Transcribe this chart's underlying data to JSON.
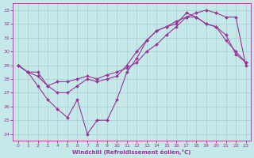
{
  "xlabel": "Windchill (Refroidissement éolien,°C)",
  "background_color": "#c5e8e8",
  "line_color": "#993399",
  "grid_color": "#a8d0d0",
  "ylim": [
    23.5,
    33.5
  ],
  "xlim": [
    -0.5,
    23.5
  ],
  "yticks": [
    24,
    25,
    26,
    27,
    28,
    29,
    30,
    31,
    32,
    33
  ],
  "xticks": [
    0,
    1,
    2,
    3,
    4,
    5,
    6,
    7,
    8,
    9,
    10,
    11,
    12,
    13,
    14,
    15,
    16,
    17,
    18,
    19,
    20,
    21,
    22,
    23
  ],
  "line1_x": [
    0,
    1,
    2,
    3,
    4,
    5,
    6,
    7,
    8,
    9,
    10,
    11,
    12,
    13,
    14,
    15,
    16,
    17,
    18,
    19,
    20,
    21,
    22,
    23
  ],
  "line1_y": [
    29.0,
    28.5,
    28.2,
    27.5,
    27.8,
    27.8,
    28.0,
    28.2,
    28.0,
    28.3,
    28.5,
    28.8,
    29.2,
    30.0,
    30.5,
    31.2,
    31.8,
    32.5,
    32.8,
    33.0,
    32.8,
    32.5,
    32.5,
    29.0
  ],
  "line2_x": [
    0,
    1,
    2,
    3,
    4,
    5,
    6,
    7,
    8,
    9,
    10,
    11,
    12,
    13,
    14,
    15,
    16,
    17,
    18,
    19,
    20,
    21,
    22,
    23
  ],
  "line2_y": [
    29.0,
    28.5,
    28.5,
    27.5,
    27.0,
    27.0,
    27.5,
    28.0,
    27.8,
    28.0,
    28.2,
    29.0,
    30.0,
    30.8,
    31.5,
    31.8,
    32.2,
    32.5,
    32.5,
    32.0,
    31.8,
    31.2,
    29.8,
    29.2
  ],
  "line3_x": [
    0,
    1,
    2,
    3,
    4,
    5,
    6,
    7,
    8,
    9,
    10,
    11,
    12,
    13,
    14,
    15,
    16,
    17,
    18,
    19,
    20,
    21,
    22,
    23
  ],
  "line3_y": [
    29.0,
    28.5,
    27.5,
    26.5,
    25.8,
    25.2,
    26.5,
    24.0,
    25.0,
    25.0,
    26.5,
    28.5,
    29.5,
    30.8,
    31.5,
    31.8,
    32.0,
    32.8,
    32.5,
    32.0,
    31.8,
    30.8,
    30.0,
    29.2
  ]
}
